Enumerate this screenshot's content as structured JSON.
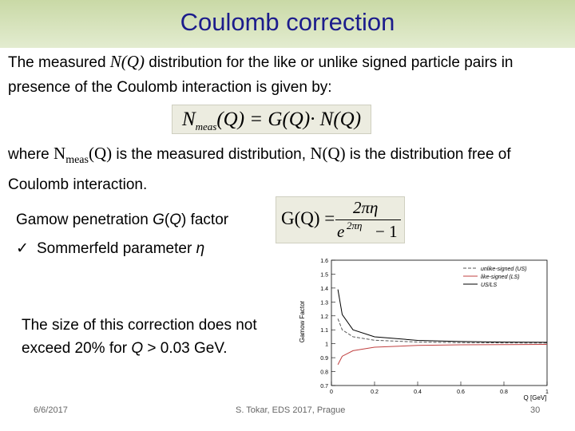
{
  "header": {
    "title": "Coulomb correction"
  },
  "body": {
    "intro": [
      "The measured ",
      "N(Q)",
      " distribution for the like or unlike signed particle pairs in presence of the Coulomb interaction is given by:"
    ],
    "formula1": [
      "N",
      "meas",
      "(Q) = G(Q)· N(Q)"
    ],
    "where": [
      "where ",
      "N",
      "meas",
      "(Q)",
      " is the measured distribution, ",
      "N(Q)",
      " is the distribution free of Coulomb interaction."
    ],
    "gamow": [
      "Gamow penetration ",
      "G",
      "(",
      "Q",
      ") factor"
    ],
    "formula2": {
      "lhs": "G(Q) =",
      "numerator": "2πη",
      "base": "e",
      "exponent": "2πη",
      "tail": "− 1"
    },
    "bullet": {
      "marker": "✓",
      "text": [
        "Sommerfeld parameter ",
        "η"
      ]
    },
    "note": [
      "The size of this correction does not exceed 20% for ",
      "Q",
      " > 0.03 GeV."
    ]
  },
  "chart_data": {
    "type": "line",
    "ylabel": "Gamow Factor",
    "xlabel": "Q [GeV]",
    "x": [
      0.03,
      0.05,
      0.1,
      0.2,
      0.4,
      0.6,
      0.8,
      1.0
    ],
    "series": [
      {
        "name": "unlike-signed (US)",
        "color": "#555555",
        "dashed": true,
        "values": [
          1.18,
          1.1,
          1.05,
          1.025,
          1.012,
          1.008,
          1.006,
          1.005
        ]
      },
      {
        "name": "like-signed (LS)",
        "color": "#c04040",
        "dashed": false,
        "values": [
          0.85,
          0.91,
          0.95,
          0.975,
          0.988,
          0.992,
          0.994,
          0.995
        ]
      },
      {
        "name": "US/LS",
        "color": "#000000",
        "dashed": false,
        "values": [
          1.39,
          1.21,
          1.1,
          1.05,
          1.024,
          1.016,
          1.012,
          1.01
        ]
      }
    ],
    "xlim": [
      0,
      1
    ],
    "xticks": [
      0,
      0.2,
      0.4,
      0.6,
      0.8,
      1
    ],
    "ylim": [
      0.7,
      1.6
    ],
    "yticks": [
      0.7,
      0.8,
      0.9,
      1,
      1.1,
      1.2,
      1.3,
      1.4,
      1.5,
      1.6
    ],
    "legend": "upper right"
  },
  "footer": {
    "date": "6/6/2017",
    "center": "S. Tokar, EDS 2017, Prague",
    "page": "30"
  }
}
